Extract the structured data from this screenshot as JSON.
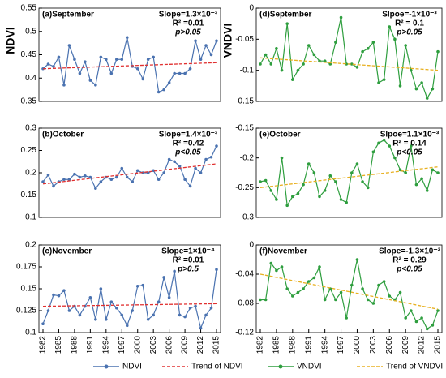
{
  "chart_data": [
    {
      "type": "line",
      "title": "(a)September",
      "ylabel": "NDVI",
      "annotations": [
        "Slope=1.3×10⁻³",
        "R² =0.01",
        "p>0.05"
      ],
      "x": [
        1982,
        1983,
        1984,
        1985,
        1986,
        1987,
        1988,
        1989,
        1990,
        1991,
        1992,
        1993,
        1994,
        1995,
        1996,
        1997,
        1998,
        1999,
        2000,
        2001,
        2002,
        2003,
        2004,
        2005,
        2006,
        2007,
        2008,
        2009,
        2010,
        2011,
        2012,
        2013,
        2014,
        2015
      ],
      "ylim": [
        0.35,
        0.55
      ],
      "yticks": [
        0.35,
        0.4,
        0.45,
        0.5,
        0.55
      ],
      "series": [
        {
          "name": "NDVI",
          "color": "#4a72b0",
          "values": [
            0.42,
            0.43,
            0.425,
            0.445,
            0.385,
            0.47,
            0.44,
            0.41,
            0.435,
            0.395,
            0.385,
            0.445,
            0.44,
            0.41,
            0.44,
            0.44,
            0.487,
            0.425,
            0.42,
            0.398,
            0.44,
            0.445,
            0.37,
            0.375,
            0.39,
            0.41,
            0.41,
            0.41,
            0.42,
            0.48,
            0.44,
            0.47,
            0.45,
            0.48
          ]
        },
        {
          "name": "Trend of NDVI",
          "color": "#e03030",
          "dashed": true,
          "x": [
            1982,
            2015
          ],
          "values": [
            0.42,
            0.433
          ]
        }
      ]
    },
    {
      "type": "line",
      "title": "(b)October",
      "annotations": [
        "Slope=1.4×10⁻³",
        "R² =0.42",
        "p<0.05"
      ],
      "x": [
        1982,
        1983,
        1984,
        1985,
        1986,
        1987,
        1988,
        1989,
        1990,
        1991,
        1992,
        1993,
        1994,
        1995,
        1996,
        1997,
        1998,
        1999,
        2000,
        2001,
        2002,
        2003,
        2004,
        2005,
        2006,
        2007,
        2008,
        2009,
        2010,
        2011,
        2012,
        2013,
        2014,
        2015
      ],
      "ylim": [
        0.1,
        0.3
      ],
      "yticks": [
        0.1,
        0.15,
        0.2,
        0.25,
        0.3
      ],
      "series": [
        {
          "name": "NDVI",
          "color": "#4a72b0",
          "values": [
            0.18,
            0.195,
            0.17,
            0.18,
            0.185,
            0.185,
            0.197,
            0.19,
            0.193,
            0.19,
            0.165,
            0.18,
            0.19,
            0.185,
            0.19,
            0.21,
            0.19,
            0.18,
            0.205,
            0.2,
            0.2,
            0.205,
            0.185,
            0.2,
            0.23,
            0.225,
            0.215,
            0.185,
            0.17,
            0.21,
            0.2,
            0.23,
            0.235,
            0.26
          ]
        },
        {
          "name": "Trend of NDVI",
          "color": "#e03030",
          "dashed": true,
          "x": [
            1982,
            2015
          ],
          "values": [
            0.175,
            0.22
          ]
        }
      ]
    },
    {
      "type": "line",
      "title": "(c)November",
      "annotations": [
        "Slope=1×10⁻⁴",
        "R² =0.01",
        "p>0.5"
      ],
      "x": [
        1982,
        1983,
        1984,
        1985,
        1986,
        1987,
        1988,
        1989,
        1990,
        1991,
        1992,
        1993,
        1994,
        1995,
        1996,
        1997,
        1998,
        1999,
        2000,
        2001,
        2002,
        2003,
        2004,
        2005,
        2006,
        2007,
        2008,
        2009,
        2010,
        2011,
        2012,
        2013,
        2014,
        2015
      ],
      "xticks": [
        1982,
        1985,
        1988,
        1991,
        1994,
        1997,
        2000,
        2003,
        2006,
        2009,
        2012,
        2015
      ],
      "ylim": [
        0.1,
        0.2
      ],
      "yticks": [
        0.1,
        0.125,
        0.15,
        0.175,
        0.2
      ],
      "series": [
        {
          "name": "NDVI",
          "color": "#4a72b0",
          "values": [
            0.11,
            0.125,
            0.143,
            0.142,
            0.148,
            0.125,
            0.13,
            0.12,
            0.13,
            0.14,
            0.115,
            0.15,
            0.115,
            0.135,
            0.128,
            0.12,
            0.108,
            0.125,
            0.153,
            0.154,
            0.115,
            0.12,
            0.135,
            0.163,
            0.14,
            0.17,
            0.12,
            0.118,
            0.128,
            0.13,
            0.105,
            0.12,
            0.128,
            0.172
          ]
        },
        {
          "name": "Trend of NDVI",
          "color": "#e03030",
          "dashed": true,
          "x": [
            1982,
            2015
          ],
          "values": [
            0.13,
            0.133
          ]
        }
      ]
    },
    {
      "type": "line",
      "title": "(d)September",
      "ylabel": "VNDVI",
      "annotations": [
        "Slpoe=-1×10⁻³",
        "R² = 0.1",
        "p>0.05"
      ],
      "x": [
        1982,
        1983,
        1984,
        1985,
        1986,
        1987,
        1988,
        1989,
        1990,
        1991,
        1992,
        1993,
        1994,
        1995,
        1996,
        1997,
        1998,
        1999,
        2000,
        2001,
        2002,
        2003,
        2004,
        2005,
        2006,
        2007,
        2008,
        2009,
        2010,
        2011,
        2012,
        2013,
        2014,
        2015
      ],
      "ylim": [
        -0.15,
        0
      ],
      "yticks": [
        -0.15,
        -0.1,
        -0.05,
        0
      ],
      "series": [
        {
          "name": "VNDVI",
          "color": "#2e9e3e",
          "values": [
            -0.09,
            -0.075,
            -0.09,
            -0.065,
            -0.1,
            -0.025,
            -0.115,
            -0.1,
            -0.09,
            -0.06,
            -0.075,
            -0.085,
            -0.085,
            -0.09,
            -0.055,
            -0.015,
            -0.09,
            -0.09,
            -0.095,
            -0.07,
            -0.065,
            -0.055,
            -0.12,
            -0.115,
            -0.03,
            -0.05,
            -0.125,
            -0.06,
            -0.1,
            -0.13,
            -0.12,
            -0.145,
            -0.13,
            -0.07
          ]
        },
        {
          "name": "Trend of VNDVI",
          "color": "#e8b020",
          "dashed": true,
          "x": [
            1982,
            2015
          ],
          "values": [
            -0.08,
            -0.1
          ]
        }
      ]
    },
    {
      "type": "line",
      "title": "(e)October",
      "annotations": [
        "Slpoe=1.1×10⁻³",
        "R² = 0.14",
        "p<0.05"
      ],
      "x": [
        1982,
        1983,
        1984,
        1985,
        1986,
        1987,
        1988,
        1989,
        1990,
        1991,
        1992,
        1993,
        1994,
        1995,
        1996,
        1997,
        1998,
        1999,
        2000,
        2001,
        2002,
        2003,
        2004,
        2005,
        2006,
        2007,
        2008,
        2009,
        2010,
        2011,
        2012,
        2013,
        2014,
        2015
      ],
      "ylim": [
        -0.3,
        -0.15
      ],
      "yticks": [
        -0.3,
        -0.25,
        -0.2,
        -0.15
      ],
      "series": [
        {
          "name": "VNDVI",
          "color": "#2e9e3e",
          "values": [
            -0.24,
            -0.238,
            -0.255,
            -0.27,
            -0.2,
            -0.28,
            -0.265,
            -0.26,
            -0.245,
            -0.21,
            -0.225,
            -0.265,
            -0.255,
            -0.23,
            -0.24,
            -0.27,
            -0.275,
            -0.225,
            -0.21,
            -0.24,
            -0.25,
            -0.19,
            -0.175,
            -0.17,
            -0.18,
            -0.2,
            -0.22,
            -0.225,
            -0.18,
            -0.245,
            -0.235,
            -0.255,
            -0.22,
            -0.225
          ]
        },
        {
          "name": "Trend of VNDVI",
          "color": "#e8b020",
          "dashed": true,
          "x": [
            1982,
            2015
          ],
          "values": [
            -0.25,
            -0.215
          ]
        }
      ]
    },
    {
      "type": "line",
      "title": "(f)November",
      "annotations": [
        "Slope=-1.3×10⁻³",
        "R² = 0.29",
        "p<0.05"
      ],
      "x": [
        1982,
        1983,
        1984,
        1985,
        1986,
        1987,
        1988,
        1989,
        1990,
        1991,
        1992,
        1993,
        1994,
        1995,
        1996,
        1997,
        1998,
        1999,
        2000,
        2001,
        2002,
        2003,
        2004,
        2005,
        2006,
        2007,
        2008,
        2009,
        2010,
        2011,
        2012,
        2013,
        2014,
        2015
      ],
      "xticks": [
        1982,
        1985,
        1988,
        1991,
        1994,
        1997,
        2000,
        2003,
        2006,
        2009,
        2012,
        2015
      ],
      "ylim": [
        -0.12,
        0
      ],
      "yticks": [
        -0.12,
        -0.08,
        -0.04,
        0
      ],
      "series": [
        {
          "name": "VNDVI",
          "color": "#2e9e3e",
          "values": [
            -0.075,
            -0.075,
            -0.025,
            -0.035,
            -0.03,
            -0.06,
            -0.07,
            -0.065,
            -0.06,
            -0.05,
            -0.045,
            -0.03,
            -0.075,
            -0.06,
            -0.075,
            -0.065,
            -0.1,
            -0.055,
            -0.02,
            -0.06,
            -0.075,
            -0.08,
            -0.055,
            -0.05,
            -0.07,
            -0.075,
            -0.065,
            -0.1,
            -0.09,
            -0.105,
            -0.1,
            -0.115,
            -0.11,
            -0.09
          ]
        },
        {
          "name": "Trend of VNDVI",
          "color": "#e8b020",
          "dashed": true,
          "x": [
            1982,
            2015
          ],
          "values": [
            -0.04,
            -0.088
          ]
        }
      ]
    }
  ]
}
